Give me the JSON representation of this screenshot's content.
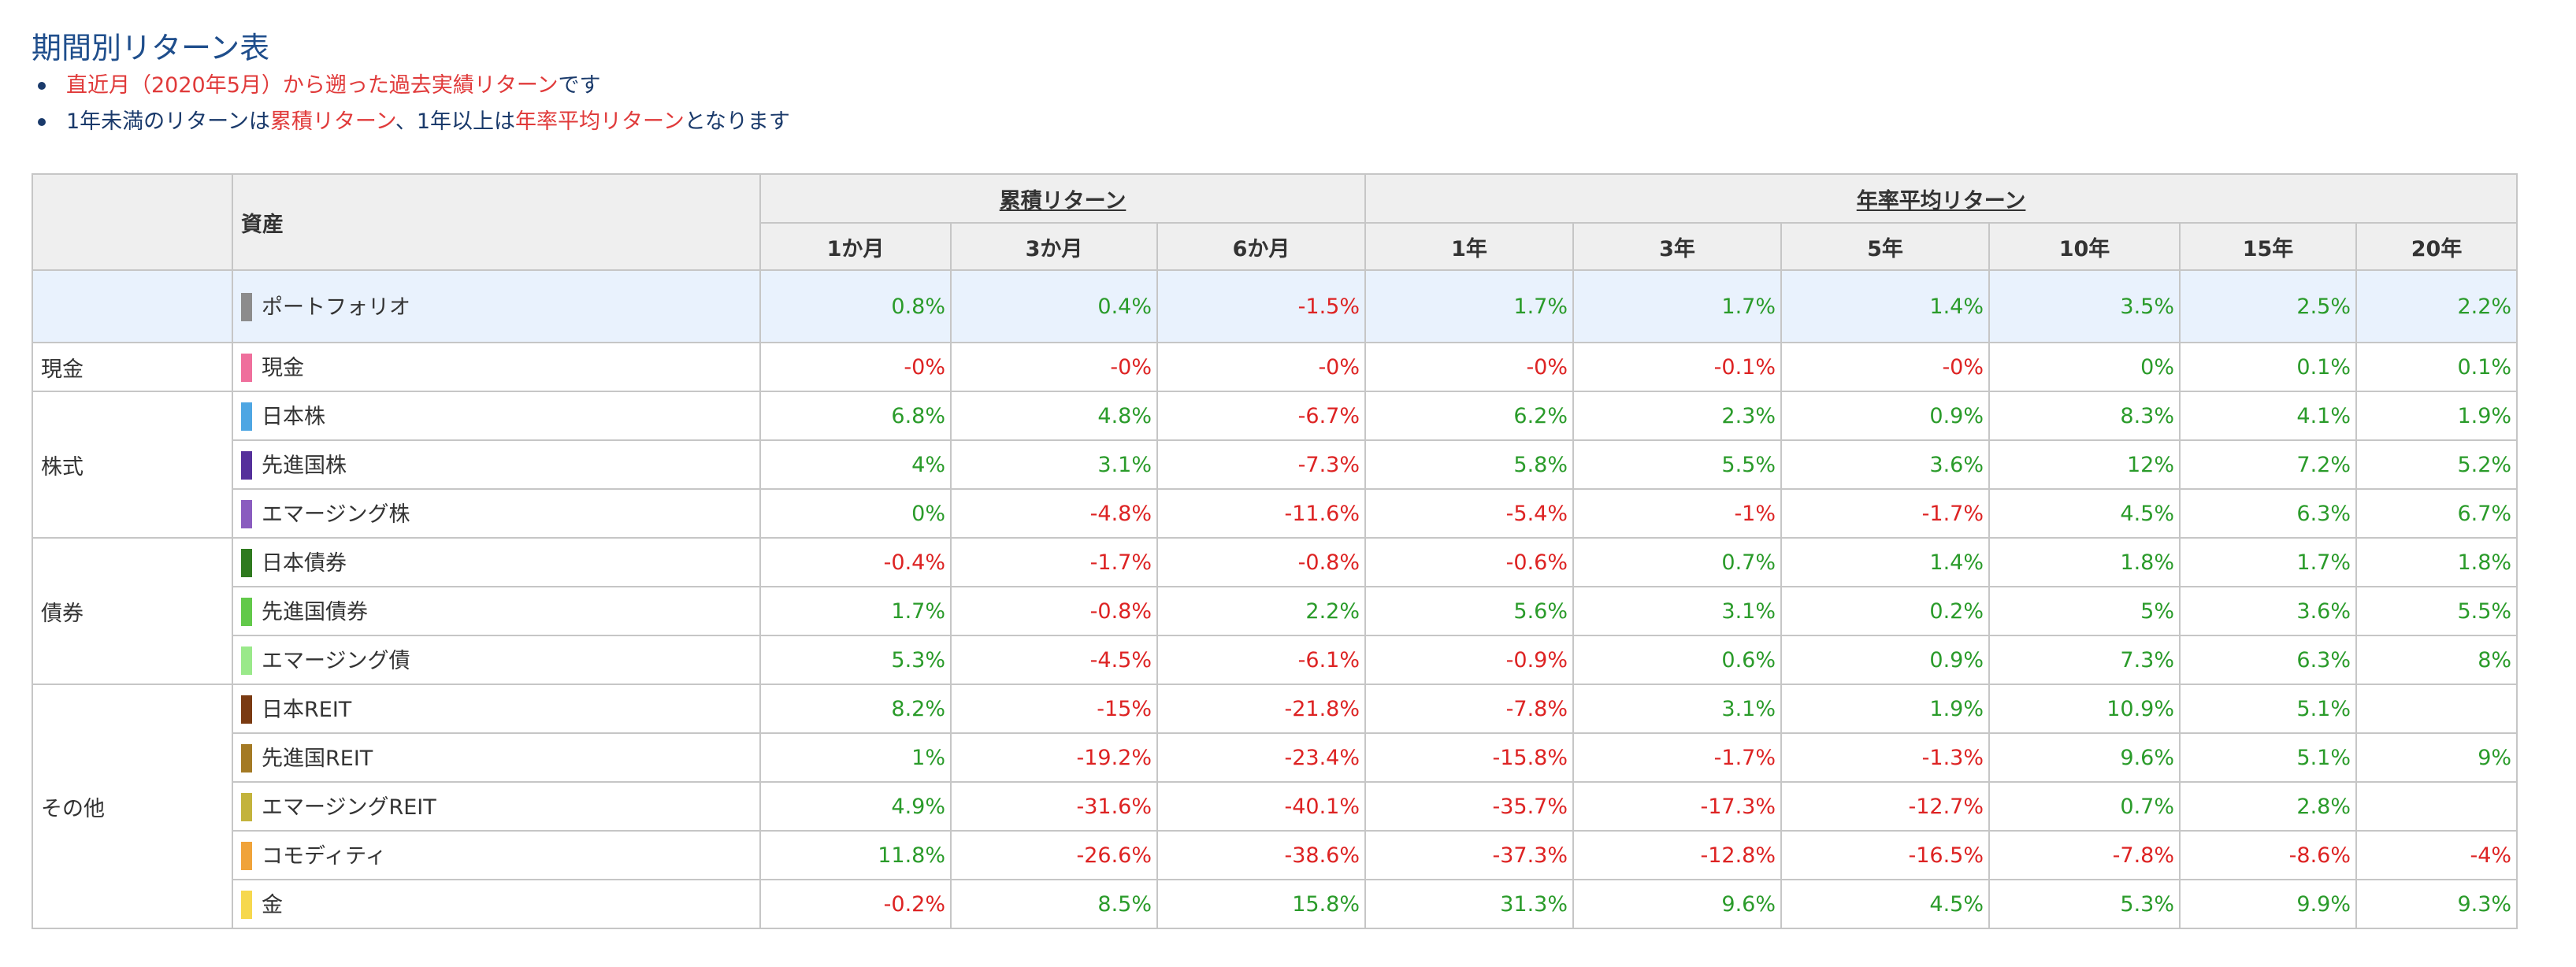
{
  "title": "期間別リターン表",
  "notes": [
    {
      "red": "直近月（2020年5月）から遡った過去実績リターン",
      "tail": "です"
    },
    {
      "p1": "1年未満のリターンは",
      "r1": "累積リターン",
      "p2": "、1年以上は",
      "r2": "年率平均リターン",
      "p3": "となります"
    }
  ],
  "table": {
    "asset_header": "資産",
    "group_cumulative": "累積リターン",
    "group_annual": "年率平均リターン",
    "periods": [
      "1か月",
      "3か月",
      "6か月",
      "1年",
      "3年",
      "5年",
      "10年",
      "15年",
      "20年"
    ],
    "portfolio": {
      "name": "ポートフォリオ",
      "color": "#8c8c8c",
      "values": [
        "0.8%",
        "0.4%",
        "-1.5%",
        "1.7%",
        "1.7%",
        "1.4%",
        "3.5%",
        "2.5%",
        "2.2%"
      ]
    },
    "categories": [
      {
        "name": "現金",
        "rows": [
          {
            "name": "現金",
            "color": "#ef6f9c",
            "values": [
              "-0%",
              "-0%",
              "-0%",
              "-0%",
              "-0.1%",
              "-0%",
              "0%",
              "0.1%",
              "0.1%"
            ]
          }
        ]
      },
      {
        "name": "株式",
        "rows": [
          {
            "name": "日本株",
            "color": "#4ea6e3",
            "values": [
              "6.8%",
              "4.8%",
              "-6.7%",
              "6.2%",
              "2.3%",
              "0.9%",
              "8.3%",
              "4.1%",
              "1.9%"
            ]
          },
          {
            "name": "先進国株",
            "color": "#55309b",
            "values": [
              "4%",
              "3.1%",
              "-7.3%",
              "5.8%",
              "5.5%",
              "3.6%",
              "12%",
              "7.2%",
              "5.2%"
            ]
          },
          {
            "name": "エマージング株",
            "color": "#8a5cbf",
            "values": [
              "0%",
              "-4.8%",
              "-11.6%",
              "-5.4%",
              "-1%",
              "-1.7%",
              "4.5%",
              "6.3%",
              "6.7%"
            ]
          }
        ]
      },
      {
        "name": "債券",
        "rows": [
          {
            "name": "日本債券",
            "color": "#2f7a1f",
            "values": [
              "-0.4%",
              "-1.7%",
              "-0.8%",
              "-0.6%",
              "0.7%",
              "1.4%",
              "1.8%",
              "1.7%",
              "1.8%"
            ]
          },
          {
            "name": "先進国債券",
            "color": "#62c94a",
            "values": [
              "1.7%",
              "-0.8%",
              "2.2%",
              "5.6%",
              "3.1%",
              "0.2%",
              "5%",
              "3.6%",
              "5.5%"
            ]
          },
          {
            "name": "エマージング債",
            "color": "#9ae98a",
            "values": [
              "5.3%",
              "-4.5%",
              "-6.1%",
              "-0.9%",
              "0.6%",
              "0.9%",
              "7.3%",
              "6.3%",
              "8%"
            ]
          }
        ]
      },
      {
        "name": "その他",
        "rows": [
          {
            "name": "日本REIT",
            "color": "#7a3a12",
            "values": [
              "8.2%",
              "-15%",
              "-21.8%",
              "-7.8%",
              "3.1%",
              "1.9%",
              "10.9%",
              "5.1%",
              ""
            ]
          },
          {
            "name": "先進国REIT",
            "color": "#a47a24",
            "values": [
              "1%",
              "-19.2%",
              "-23.4%",
              "-15.8%",
              "-1.7%",
              "-1.3%",
              "9.6%",
              "5.1%",
              "9%"
            ]
          },
          {
            "name": "エマージングREIT",
            "color": "#c3b33c",
            "values": [
              "4.9%",
              "-31.6%",
              "-40.1%",
              "-35.7%",
              "-17.3%",
              "-12.7%",
              "0.7%",
              "2.8%",
              ""
            ]
          },
          {
            "name": "コモディティ",
            "color": "#f0a33a",
            "values": [
              "11.8%",
              "-26.6%",
              "-38.6%",
              "-37.3%",
              "-12.8%",
              "-16.5%",
              "-7.8%",
              "-8.6%",
              "-4%"
            ]
          },
          {
            "name": "金",
            "color": "#f6d84e",
            "values": [
              "-0.2%",
              "8.5%",
              "15.8%",
              "31.3%",
              "9.6%",
              "4.5%",
              "5.3%",
              "9.9%",
              "9.3%"
            ]
          }
        ]
      }
    ]
  }
}
